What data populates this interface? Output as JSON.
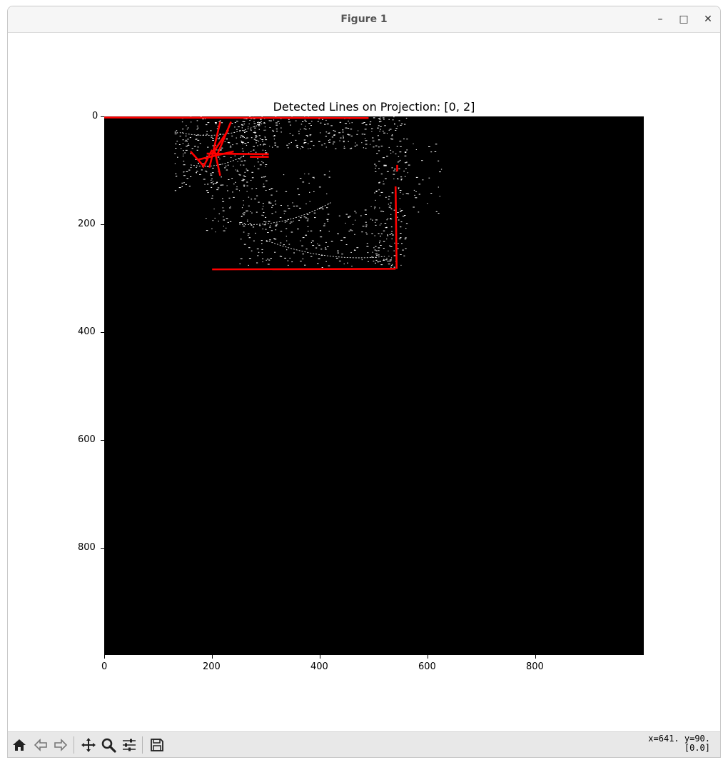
{
  "window": {
    "title": "Figure 1",
    "minimize_glyph": "–",
    "maximize_glyph": "□",
    "close_glyph": "✕"
  },
  "figure": {
    "title": "Detected Lines on Projection: [0, 2]",
    "image": "black binary projection image with sparse white edge points and red detected line segments",
    "x_ticks": [
      "0",
      "200",
      "400",
      "600",
      "800"
    ],
    "y_ticks": [
      "0",
      "200",
      "400",
      "600",
      "800"
    ]
  },
  "chart_data": {
    "type": "image",
    "title": "Detected Lines on Projection: [0, 2]",
    "xlim": [
      0,
      1000
    ],
    "ylim": [
      1000,
      0
    ],
    "x_ticks": [
      0,
      200,
      400,
      600,
      800
    ],
    "y_ticks": [
      0,
      200,
      400,
      600,
      800
    ],
    "line_color": "#ff0000",
    "point_color": "#ffffff",
    "background_color": "#000000",
    "lines": [
      {
        "x1": 0,
        "y1": 2,
        "x2": 490,
        "y2": 3
      },
      {
        "x1": 200,
        "y1": 284,
        "x2": 540,
        "y2": 283
      },
      {
        "x1": 540,
        "y1": 130,
        "x2": 542,
        "y2": 283
      },
      {
        "x1": 543,
        "y1": 90,
        "x2": 543,
        "y2": 102
      },
      {
        "x1": 190,
        "y1": 69,
        "x2": 305,
        "y2": 70
      },
      {
        "x1": 160,
        "y1": 65,
        "x2": 185,
        "y2": 93
      },
      {
        "x1": 183,
        "y1": 95,
        "x2": 200,
        "y2": 62
      },
      {
        "x1": 195,
        "y1": 95,
        "x2": 215,
        "y2": 10
      },
      {
        "x1": 200,
        "y1": 70,
        "x2": 230,
        "y2": 25
      },
      {
        "x1": 205,
        "y1": 65,
        "x2": 215,
        "y2": 110
      },
      {
        "x1": 210,
        "y1": 70,
        "x2": 235,
        "y2": 10
      },
      {
        "x1": 175,
        "y1": 80,
        "x2": 240,
        "y2": 65
      },
      {
        "x1": 270,
        "y1": 75,
        "x2": 305,
        "y2": 75
      }
    ]
  },
  "toolbar": {
    "coords_line1": "x=641. y=90.",
    "coords_line2": "[0.0]",
    "buttons": [
      "home-icon",
      "back-icon",
      "forward-icon",
      "pan-icon",
      "zoom-icon",
      "configure-icon",
      "save-icon"
    ]
  }
}
